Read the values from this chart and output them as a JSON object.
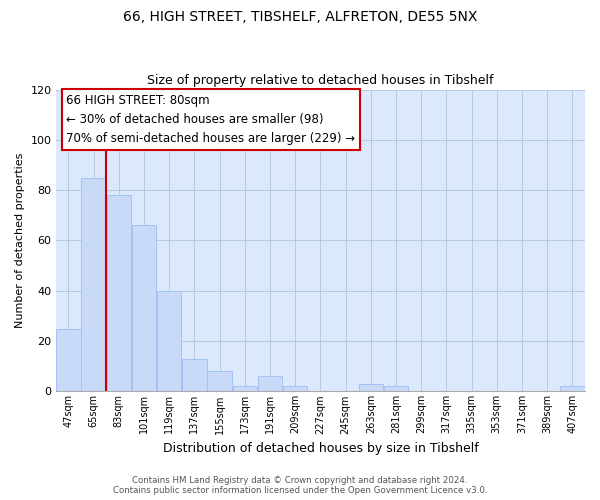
{
  "title": "66, HIGH STREET, TIBSHELF, ALFRETON, DE55 5NX",
  "subtitle": "Size of property relative to detached houses in Tibshelf",
  "xlabel": "Distribution of detached houses by size in Tibshelf",
  "ylabel": "Number of detached properties",
  "bar_labels": [
    "47sqm",
    "65sqm",
    "83sqm",
    "101sqm",
    "119sqm",
    "137sqm",
    "155sqm",
    "173sqm",
    "191sqm",
    "209sqm",
    "227sqm",
    "245sqm",
    "263sqm",
    "281sqm",
    "299sqm",
    "317sqm",
    "335sqm",
    "353sqm",
    "371sqm",
    "389sqm",
    "407sqm"
  ],
  "bar_values": [
    25,
    85,
    78,
    66,
    40,
    13,
    8,
    2,
    6,
    2,
    0,
    0,
    3,
    2,
    0,
    0,
    0,
    0,
    0,
    0,
    2
  ],
  "bar_color": "#c9daf8",
  "bar_edge_color": "#a4c2f4",
  "vline_color": "#cc0000",
  "vline_x": 1.5,
  "ylim": [
    0,
    120
  ],
  "yticks": [
    0,
    20,
    40,
    60,
    80,
    100,
    120
  ],
  "annotation_title": "66 HIGH STREET: 80sqm",
  "annotation_line1": "← 30% of detached houses are smaller (98)",
  "annotation_line2": "70% of semi-detached houses are larger (229) →",
  "annotation_box_color": "#ffffff",
  "annotation_box_edge": "#cc0000",
  "footer_line1": "Contains HM Land Registry data © Crown copyright and database right 2024.",
  "footer_line2": "Contains public sector information licensed under the Open Government Licence v3.0.",
  "bg_color": "#ffffff",
  "plot_bg_color": "#dce8fb",
  "grid_color": "#b0c4de",
  "title_fontsize": 10,
  "subtitle_fontsize": 9
}
